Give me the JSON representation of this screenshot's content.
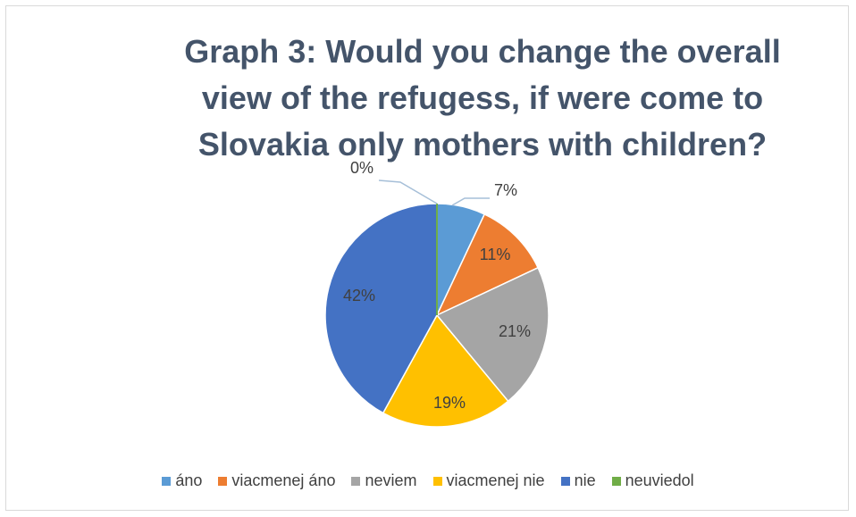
{
  "chart_data": {
    "type": "pie",
    "title": "Graph 3: Would you change the overall view of the refugess, if were come to Slovakia only mothers with children?",
    "title_lines": [
      "Graph 3: Would you change the overall",
      "view of the refugess, if were come to",
      "Slovakia only mothers with children?"
    ],
    "categories": [
      "áno",
      "viacmenej áno",
      "neviem",
      "viacmenej nie",
      "nie",
      "neuviedol"
    ],
    "values": [
      7,
      11,
      21,
      19,
      42,
      0
    ],
    "labels": [
      "7%",
      "11%",
      "21%",
      "19%",
      "42%",
      "0%"
    ],
    "colors": [
      "#5b9bd5",
      "#ed7d31",
      "#a5a5a5",
      "#ffc000",
      "#4472c4",
      "#70ad47"
    ],
    "legend_position": "bottom"
  }
}
